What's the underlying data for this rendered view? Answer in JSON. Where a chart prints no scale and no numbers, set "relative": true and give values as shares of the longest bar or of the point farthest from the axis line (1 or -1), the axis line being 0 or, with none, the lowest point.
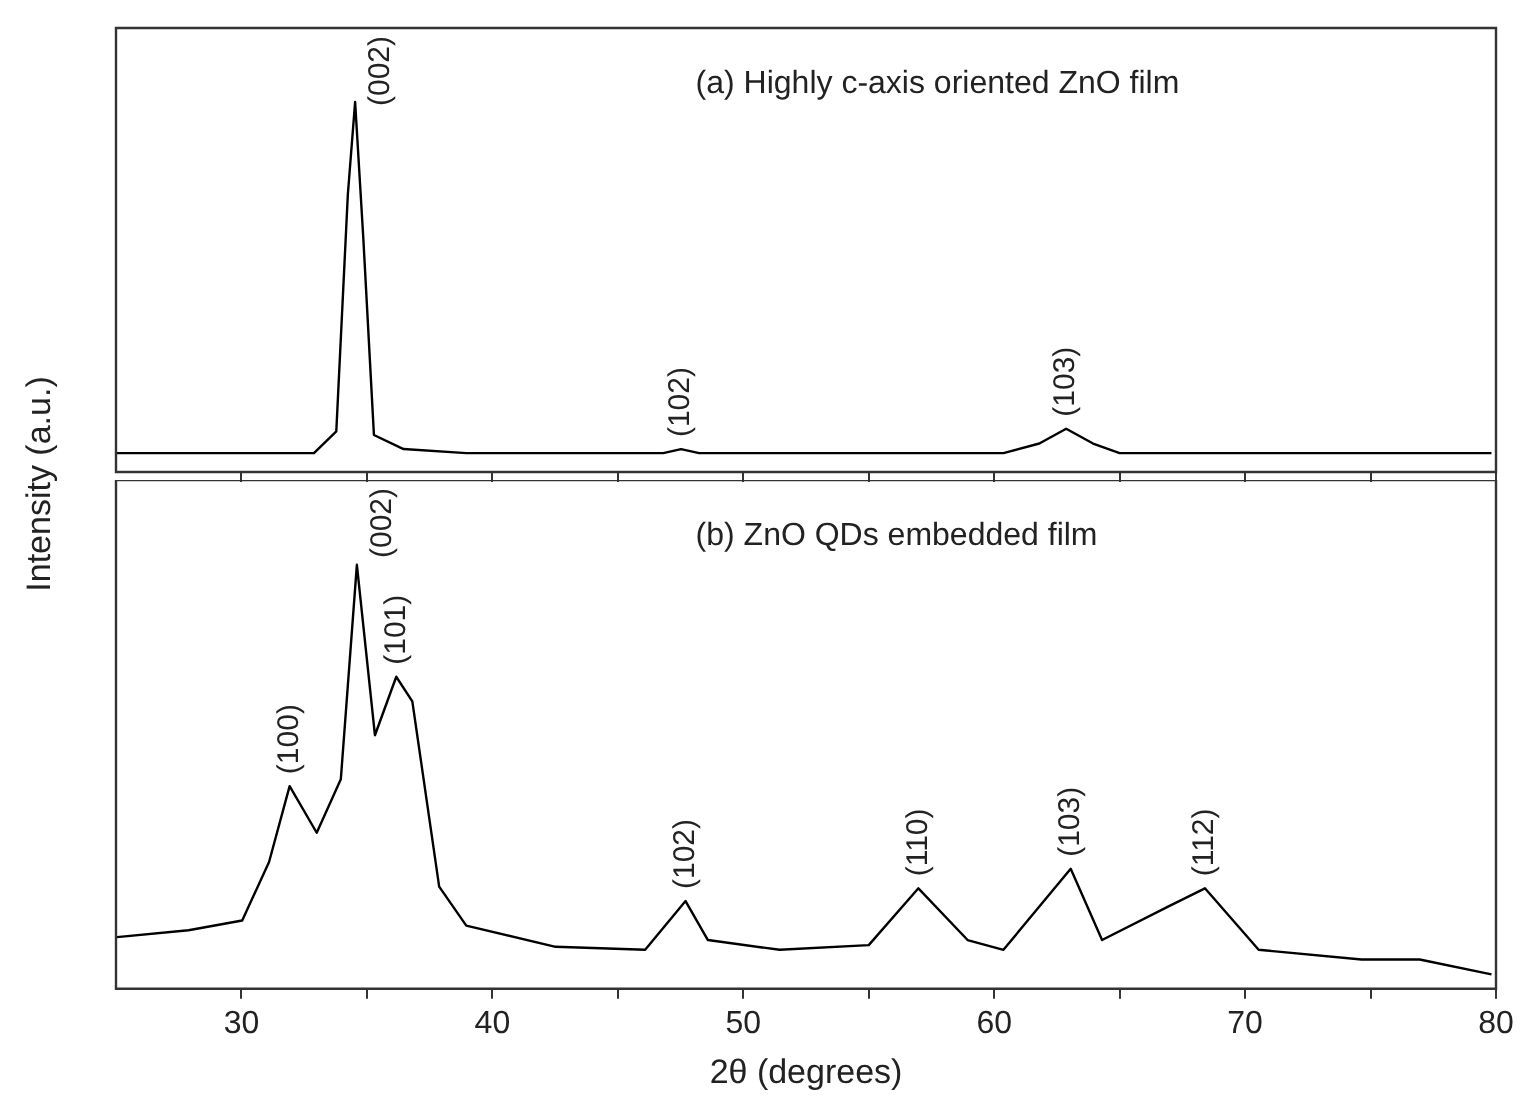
{
  "chart_data": [
    {
      "type": "line",
      "relative": true,
      "ylabel": "Intensity (a.u.)",
      "xlim": [
        25,
        80
      ],
      "xticks": [
        30,
        {
          "value": 35,
          "label": null
        },
        40,
        {
          "value": 45,
          "label": null
        },
        50,
        {
          "value": 55,
          "label": null
        },
        60,
        {
          "value": 65,
          "label": null
        },
        70,
        {
          "value": 75,
          "label": null
        },
        80
      ],
      "tick_labels": false,
      "grid": false,
      "legend": false,
      "marker": "none",
      "line_style": "solid",
      "series": [
        {
          "color": "#000000",
          "x": [
            25.04,
            32.89,
            33.78,
            34.24,
            34.53,
            34.85,
            35.28,
            36.46,
            38.96,
            46.81,
            47.52,
            48.24,
            60.37,
            61.8,
            62.87,
            63.94,
            65.0,
            79.82
          ],
          "values": [
            0.051,
            0.051,
            0.11,
            0.75,
            1,
            0.64,
            0.1,
            0.062,
            0.051,
            0.051,
            0.062,
            0.051,
            0.051,
            0.077,
            0.117,
            0.077,
            0.051,
            0.051
          ]
        }
      ],
      "annotations": [
        "(a) Highly c-axis oriented ZnO film",
        {
          "text": "(002)",
          "x": 34.53,
          "y": 1
        },
        {
          "text": "(102)",
          "x": 47.52,
          "y": 0.062
        },
        {
          "text": "(103)",
          "x": 62.87,
          "y": 0.117
        }
      ]
    },
    {
      "type": "line",
      "relative": true,
      "xlabel": "2θ (degrees)",
      "xlim": [
        25,
        80
      ],
      "xticks": [
        30,
        {
          "value": 35,
          "label": null
        },
        40,
        {
          "value": 45,
          "label": null
        },
        50,
        {
          "value": 55,
          "label": null
        },
        60,
        {
          "value": 65,
          "label": null
        },
        70,
        {
          "value": 75,
          "label": null
        },
        80
      ],
      "tick_labels": "x",
      "grid": false,
      "legend": false,
      "marker": "none",
      "line_style": "solid",
      "series": [
        {
          "color": "#000000",
          "x": [
            25.04,
            27.89,
            30.03,
            31.1,
            31.92,
            33.0,
            33.96,
            34.6,
            35.32,
            36.17,
            36.81,
            37.88,
            38.96,
            42.52,
            46.09,
            47.7,
            48.59,
            51.45,
            55.0,
            56.98,
            58.94,
            60.37,
            63.05,
            64.3,
            66.97,
            68.4,
            70.54,
            74.64,
            76.96,
            79.82
          ],
          "values": [
            0.122,
            0.138,
            0.161,
            0.299,
            0.478,
            0.368,
            0.494,
            1,
            0.598,
            0.736,
            0.678,
            0.241,
            0.149,
            0.099,
            0.092,
            0.207,
            0.115,
            0.092,
            0.103,
            0.237,
            0.115,
            0.092,
            0.283,
            0.115,
            0.195,
            0.237,
            0.092,
            0.069,
            0.069,
            0.034
          ]
        }
      ],
      "annotations": [
        "(b) ZnO QDs embedded film",
        {
          "text": "(100)",
          "x": 31.92,
          "y": 0.478
        },
        {
          "text": "(002)",
          "x": 34.6,
          "y": 1
        },
        {
          "text": "(101)",
          "x": 36.17,
          "y": 0.736
        },
        {
          "text": "(102)",
          "x": 47.7,
          "y": 0.207
        },
        {
          "text": "(110)",
          "x": 56.98,
          "y": 0.237
        },
        {
          "text": "(103)",
          "x": 63.05,
          "y": 0.283
        },
        {
          "text": "(112)",
          "x": 68.4,
          "y": 0.237
        }
      ]
    }
  ]
}
